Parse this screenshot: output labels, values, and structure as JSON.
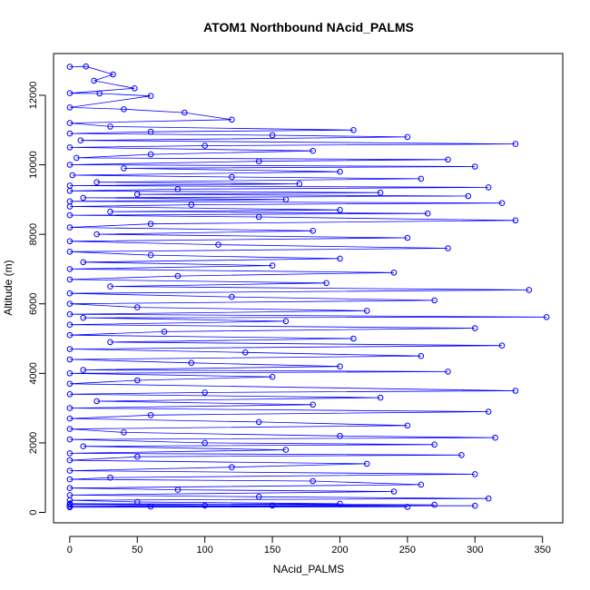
{
  "chart_data": {
    "type": "line",
    "title": "ATOM1 Northbound NAcid_PALMS",
    "xlabel": "NAcid_PALMS",
    "ylabel": "Altitude (m)",
    "xlim": [
      -12,
      365
    ],
    "ylim": [
      -300,
      13200
    ],
    "x_ticks": [
      0,
      50,
      100,
      150,
      200,
      250,
      300,
      350
    ],
    "y_ticks": [
      0,
      2000,
      4000,
      6000,
      8000,
      10000,
      12000
    ],
    "grid": false,
    "legend": "none",
    "series": [
      {
        "color": "#0000ff",
        "marker": "open-circle",
        "points": [
          [
            0,
            12820
          ],
          [
            12,
            12830
          ],
          [
            32,
            12600
          ],
          [
            18,
            12420
          ],
          [
            48,
            12200
          ],
          [
            0,
            12060
          ],
          [
            22,
            12050
          ],
          [
            60,
            11980
          ],
          [
            0,
            11650
          ],
          [
            40,
            11600
          ],
          [
            85,
            11500
          ],
          [
            120,
            11300
          ],
          [
            0,
            11200
          ],
          [
            30,
            11100
          ],
          [
            210,
            11000
          ],
          [
            60,
            10950
          ],
          [
            0,
            10900
          ],
          [
            150,
            10850
          ],
          [
            250,
            10800
          ],
          [
            8,
            10700
          ],
          [
            330,
            10600
          ],
          [
            100,
            10550
          ],
          [
            0,
            10500
          ],
          [
            180,
            10400
          ],
          [
            60,
            10300
          ],
          [
            5,
            10200
          ],
          [
            280,
            10150
          ],
          [
            140,
            10100
          ],
          [
            0,
            10000
          ],
          [
            300,
            9950
          ],
          [
            40,
            9900
          ],
          [
            200,
            9800
          ],
          [
            2,
            9700
          ],
          [
            120,
            9650
          ],
          [
            260,
            9600
          ],
          [
            20,
            9500
          ],
          [
            170,
            9450
          ],
          [
            0,
            9400
          ],
          [
            310,
            9350
          ],
          [
            80,
            9300
          ],
          [
            0,
            9250
          ],
          [
            230,
            9200
          ],
          [
            50,
            9150
          ],
          [
            295,
            9100
          ],
          [
            10,
            9050
          ],
          [
            160,
            9000
          ],
          [
            0,
            8950
          ],
          [
            320,
            8900
          ],
          [
            90,
            8850
          ],
          [
            0,
            8800
          ],
          [
            200,
            8700
          ],
          [
            30,
            8650
          ],
          [
            265,
            8600
          ],
          [
            0,
            8550
          ],
          [
            140,
            8500
          ],
          [
            330,
            8400
          ],
          [
            60,
            8300
          ],
          [
            0,
            8200
          ],
          [
            180,
            8100
          ],
          [
            20,
            8000
          ],
          [
            250,
            7900
          ],
          [
            0,
            7800
          ],
          [
            110,
            7700
          ],
          [
            280,
            7600
          ],
          [
            0,
            7500
          ],
          [
            60,
            7400
          ],
          [
            200,
            7300
          ],
          [
            10,
            7200
          ],
          [
            150,
            7100
          ],
          [
            0,
            7000
          ],
          [
            240,
            6900
          ],
          [
            80,
            6800
          ],
          [
            0,
            6700
          ],
          [
            190,
            6600
          ],
          [
            30,
            6500
          ],
          [
            340,
            6400
          ],
          [
            0,
            6300
          ],
          [
            120,
            6200
          ],
          [
            270,
            6100
          ],
          [
            0,
            6000
          ],
          [
            50,
            5900
          ],
          [
            220,
            5800
          ],
          [
            0,
            5700
          ],
          [
            353,
            5620
          ],
          [
            10,
            5600
          ],
          [
            160,
            5500
          ],
          [
            0,
            5400
          ],
          [
            300,
            5300
          ],
          [
            70,
            5200
          ],
          [
            0,
            5100
          ],
          [
            210,
            5000
          ],
          [
            30,
            4900
          ],
          [
            320,
            4800
          ],
          [
            0,
            4700
          ],
          [
            130,
            4600
          ],
          [
            260,
            4500
          ],
          [
            0,
            4400
          ],
          [
            90,
            4300
          ],
          [
            200,
            4200
          ],
          [
            10,
            4100
          ],
          [
            280,
            4050
          ],
          [
            0,
            4000
          ],
          [
            150,
            3900
          ],
          [
            50,
            3800
          ],
          [
            0,
            3700
          ],
          [
            330,
            3500
          ],
          [
            100,
            3450
          ],
          [
            0,
            3400
          ],
          [
            230,
            3300
          ],
          [
            20,
            3200
          ],
          [
            180,
            3100
          ],
          [
            0,
            3000
          ],
          [
            310,
            2900
          ],
          [
            60,
            2800
          ],
          [
            0,
            2700
          ],
          [
            140,
            2600
          ],
          [
            250,
            2500
          ],
          [
            0,
            2400
          ],
          [
            40,
            2300
          ],
          [
            200,
            2200
          ],
          [
            315,
            2150
          ],
          [
            0,
            2100
          ],
          [
            100,
            2000
          ],
          [
            270,
            1950
          ],
          [
            10,
            1900
          ],
          [
            160,
            1800
          ],
          [
            0,
            1700
          ],
          [
            290,
            1650
          ],
          [
            50,
            1600
          ],
          [
            0,
            1500
          ],
          [
            220,
            1400
          ],
          [
            120,
            1300
          ],
          [
            0,
            1200
          ],
          [
            300,
            1100
          ],
          [
            30,
            1000
          ],
          [
            0,
            950
          ],
          [
            180,
            900
          ],
          [
            260,
            800
          ],
          [
            0,
            700
          ],
          [
            80,
            650
          ],
          [
            240,
            600
          ],
          [
            0,
            500
          ],
          [
            140,
            450
          ],
          [
            310,
            400
          ],
          [
            0,
            350
          ],
          [
            50,
            300
          ],
          [
            200,
            250
          ],
          [
            0,
            230
          ],
          [
            100,
            200
          ],
          [
            300,
            190
          ],
          [
            0,
            180
          ],
          [
            60,
            170
          ],
          [
            250,
            160
          ],
          [
            0,
            150
          ],
          [
            150,
            200
          ],
          [
            270,
            220
          ],
          [
            0,
            250
          ]
        ]
      }
    ]
  }
}
